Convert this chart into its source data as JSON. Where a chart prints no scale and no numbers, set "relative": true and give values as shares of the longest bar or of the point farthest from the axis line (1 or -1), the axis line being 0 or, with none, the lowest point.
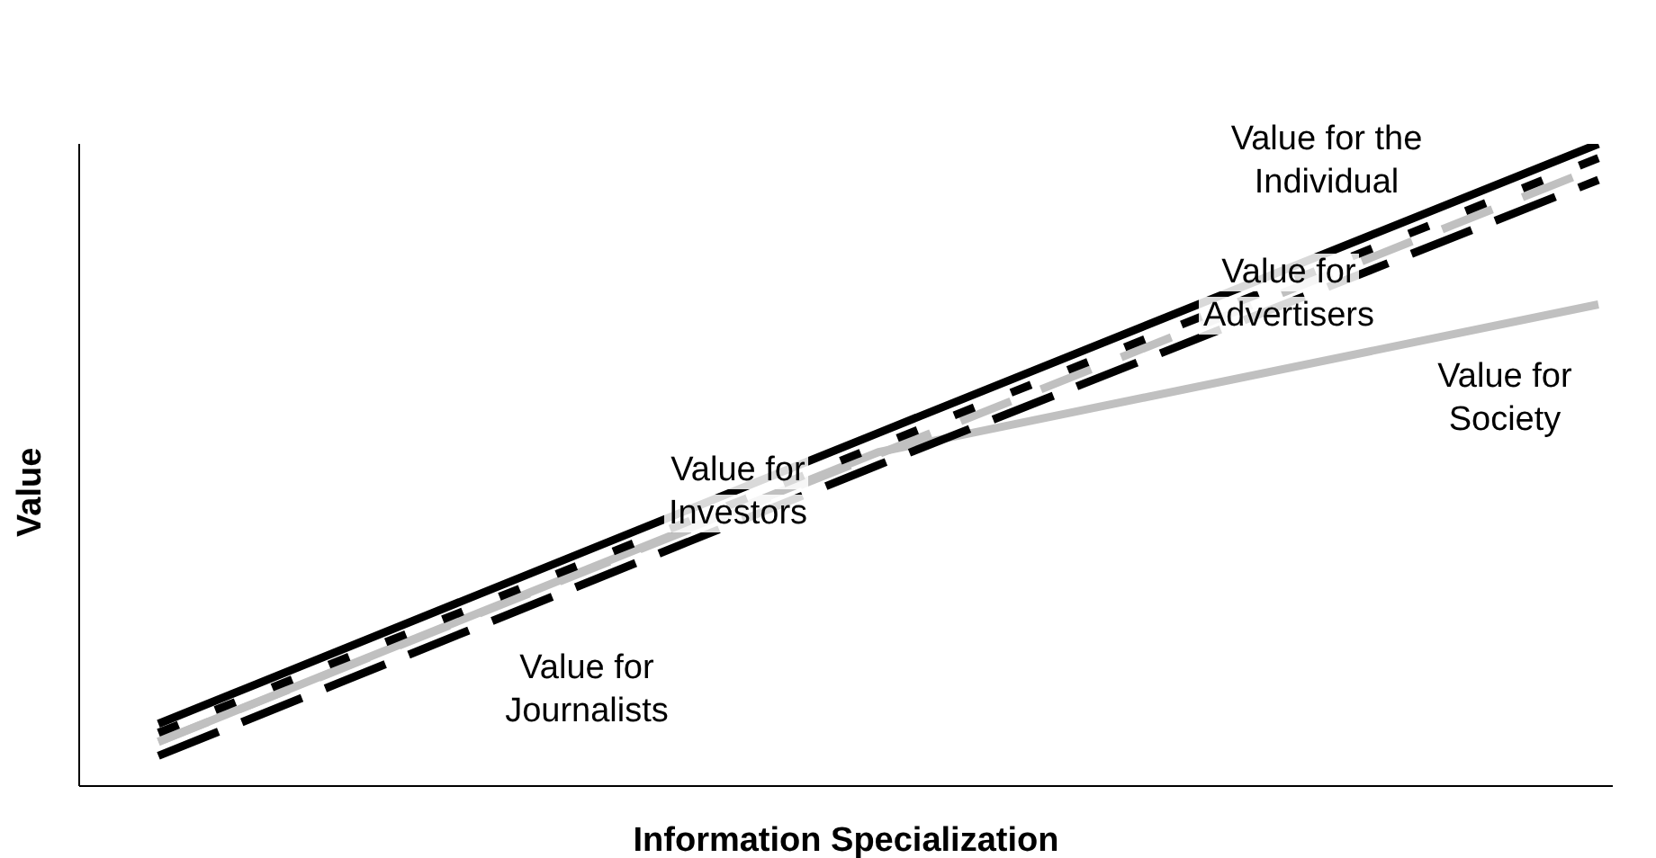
{
  "chart_data": {
    "type": "line",
    "relative": true,
    "xlabel": "Information Specialization",
    "ylabel": "Value",
    "categories": [
      null,
      null,
      null
    ],
    "legend": false,
    "marker": "none",
    "series": [
      {
        "name": "Value for the Individual",
        "color": "#000000",
        "line_style": "solid",
        "values": [
          0.097,
          0.55,
          1.0
        ]
      },
      {
        "name": "Value for Advertisers",
        "color": "#000000",
        "line_style": "dashed",
        "values": [
          0.083,
          0.53,
          0.978
        ]
      },
      {
        "name": "Value for Investors",
        "color": "#c0c0c0",
        "line_style": "dashed",
        "values": [
          0.069,
          0.517,
          0.964
        ]
      },
      {
        "name": "Value for Journalists",
        "color": "#000000",
        "line_style": "dashed",
        "values": [
          0.047,
          0.5,
          0.944
        ]
      },
      {
        "name": "Value for Society",
        "color": "#c0c0c0",
        "line_style": "solid",
        "values": [
          0.069,
          0.52,
          0.75
        ]
      }
    ]
  }
}
